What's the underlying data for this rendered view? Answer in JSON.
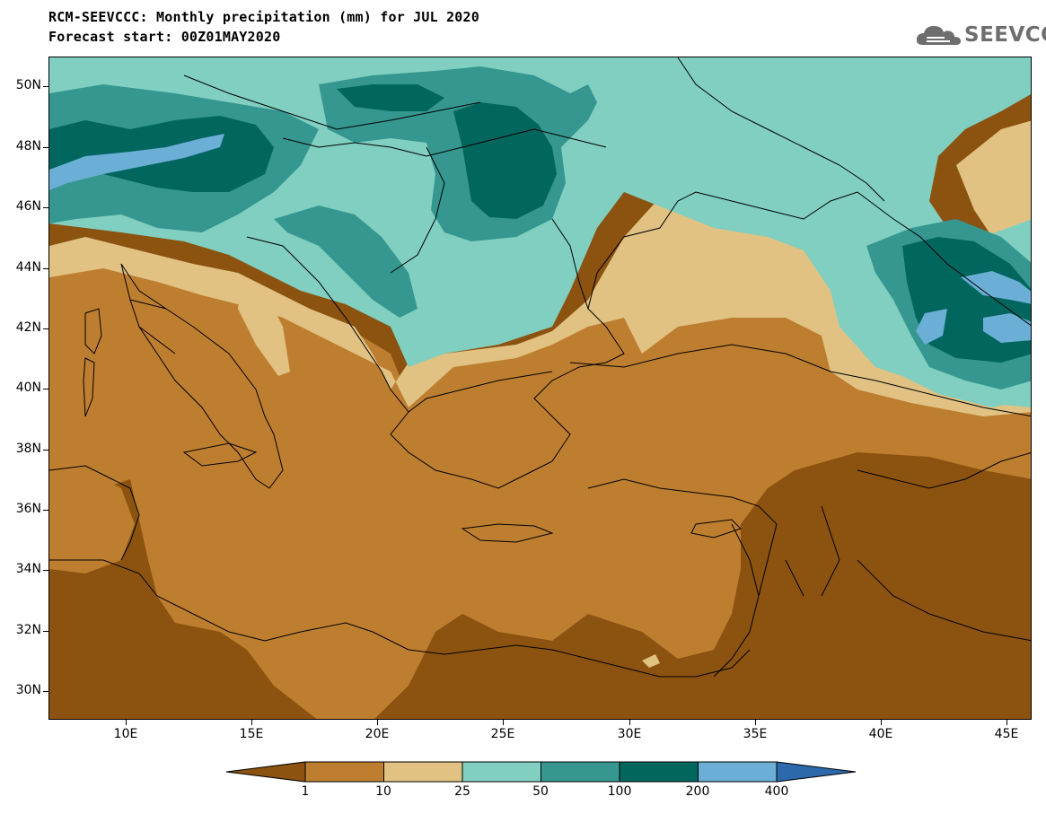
{
  "header": {
    "title_line1": "RCM-SEEVCCC: Monthly precipitation (mm) for JUL 2020",
    "title_line2": "Forecast start: 00Z01MAY2020"
  },
  "logo": {
    "icon": "cloud-logo-icon",
    "text": "SEEVCCC",
    "color": "#6e6e6e"
  },
  "map": {
    "variable": "Monthly precipitation",
    "units": "mm",
    "lat_labels": [
      "50N",
      "48N",
      "46N",
      "44N",
      "42N",
      "40N",
      "38N",
      "36N",
      "34N",
      "32N",
      "30N"
    ],
    "lon_labels": [
      "10E",
      "15E",
      "20E",
      "25E",
      "30E",
      "35E",
      "40E",
      "45E"
    ]
  },
  "colorbar": {
    "labels": [
      "1",
      "10",
      "25",
      "50",
      "100",
      "200",
      "400"
    ],
    "colors": [
      "#8b5210",
      "#be7e30",
      "#e1c283",
      "#80cfc0",
      "#35978f",
      "#01665e",
      "#6baed6",
      "#2b69ab"
    ]
  }
}
